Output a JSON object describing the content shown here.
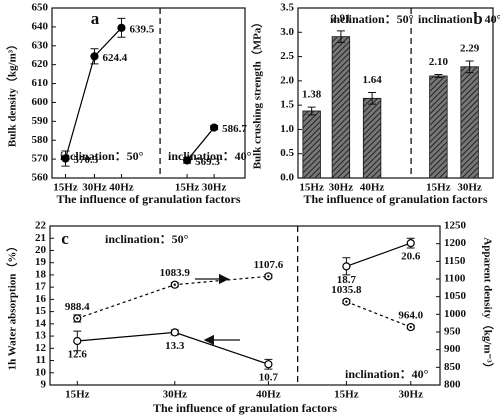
{
  "chart_data": [
    {
      "type": "line",
      "annotations": [
        "a",
        "inclination：50°",
        "inclination：40°"
      ],
      "x_label": "The influence of granulation factors",
      "y_label": "Bulk density（kg/m³）",
      "categories": [
        "15Hz",
        "30Hz",
        "40Hz",
        null,
        "15Hz",
        "30Hz"
      ],
      "ylim": [
        560,
        650
      ],
      "yticks": [
        560,
        570,
        580,
        590,
        600,
        610,
        620,
        630,
        640,
        650
      ],
      "series": [
        {
          "color": "#000000",
          "marker": "filled",
          "line_style": "solid",
          "values": [
            570.3,
            624.4,
            639.5,
            null,
            null,
            null
          ],
          "errors": [
            4,
            4,
            5,
            null,
            null,
            null
          ]
        },
        {
          "color": "#000000",
          "marker": "filled",
          "line_style": "solid",
          "values": [
            null,
            null,
            null,
            null,
            569.3,
            586.7
          ],
          "errors": [
            null,
            null,
            null,
            null,
            1.5,
            1
          ]
        }
      ]
    },
    {
      "type": "bar",
      "annotations": [
        "b",
        "inclination：50°",
        "inclination：40°"
      ],
      "x_label": "The influence of granulation factors",
      "y_label": "Bulk crushing strength（MPa）",
      "categories": [
        "15Hz",
        "30Hz",
        "40Hz",
        null,
        "15Hz",
        "30Hz"
      ],
      "ylim": [
        0,
        3.5
      ],
      "yticks": [
        {
          "value": 0,
          "label": "0.0"
        },
        0.5,
        {
          "value": 1,
          "label": "1.0"
        },
        1.5,
        {
          "value": 2,
          "label": "2.0"
        },
        2.5,
        {
          "value": 3,
          "label": "3.0"
        },
        3.5
      ],
      "color": "#4a4a4a",
      "hatch": true,
      "values": [
        1.38,
        2.91,
        1.64,
        null,
        2.1,
        2.29
      ],
      "value_labels": [
        "1.38",
        "2.91",
        "1.64",
        null,
        "2.10",
        "2.29"
      ],
      "errors": [
        0.08,
        0.12,
        0.12,
        null,
        0.03,
        0.12
      ]
    },
    {
      "type": "line",
      "annotations": [
        "c",
        "inclination：50°",
        "inclination：40°"
      ],
      "x_label": "The influence of granulation factors",
      "y_label": "1h Water absorption（%）",
      "y2_label": "Apparent density（kg/m⁻³）",
      "categories": [
        "15Hz",
        "30Hz",
        "40Hz",
        null,
        "15Hz",
        "30Hz"
      ],
      "ylim": [
        9,
        22
      ],
      "yticks": [
        9,
        10,
        11,
        12,
        13,
        14,
        15,
        16,
        17,
        18,
        19,
        20,
        21,
        22
      ],
      "y2lim": [
        800,
        1250
      ],
      "y2ticks": [
        800,
        850,
        900,
        950,
        1000,
        1050,
        1100,
        1150,
        1200,
        1250
      ],
      "series": [
        {
          "color": "#000000",
          "marker": "open",
          "line_style": "solid",
          "values": [
            12.6,
            13.3,
            10.7,
            null,
            18.7,
            20.6
          ],
          "errors": [
            0.8,
            0.2,
            0.4,
            null,
            0.7,
            0.4
          ]
        },
        {
          "color": "#000000",
          "marker": "dotted",
          "line_style": "dashed",
          "axis": "y2",
          "values": [
            988.4,
            1083.9,
            1107.6,
            null,
            1035.8,
            964.0
          ],
          "value_labels": [
            "988.4",
            "1083.9",
            "1107.6",
            null,
            "1035.8",
            "964.0"
          ],
          "errors": [
            10,
            6,
            5,
            null,
            5,
            5
          ]
        }
      ]
    }
  ]
}
